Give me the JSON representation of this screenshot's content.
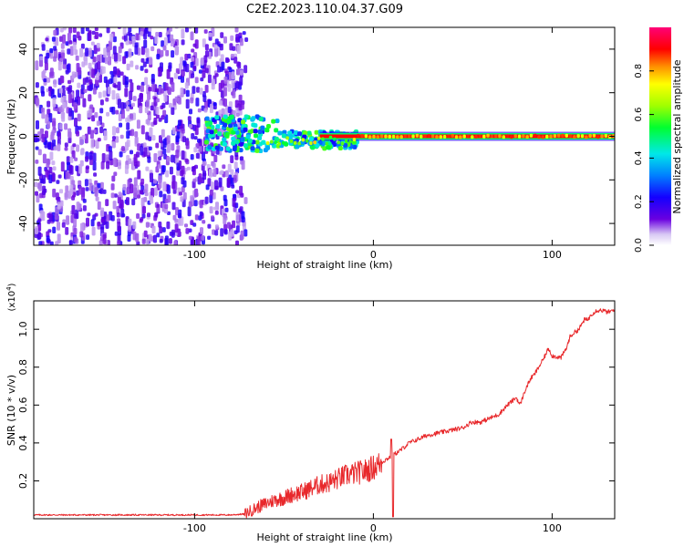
{
  "title": "C2E2.2023.110.04.37.G09",
  "chart_data": [
    {
      "type": "heatmap",
      "xlabel": "Height of straight line (km)",
      "ylabel": "Frequency (Hz)",
      "xlim": [
        -190,
        135
      ],
      "ylim": [
        -50,
        50
      ],
      "xticks": [
        -100,
        0,
        100
      ],
      "yticks": [
        -40,
        -20,
        0,
        20,
        40
      ],
      "colorbar": {
        "label": "Normalized spectral amplitude",
        "range": [
          0.0,
          1.0
        ],
        "ticks": [
          0.0,
          0.2,
          0.4,
          0.6,
          0.8
        ],
        "colormap": "rainbow (violet to magenta)"
      },
      "regions": [
        {
          "x_range": [
            -190,
            -70
          ],
          "frequency_range": [
            -50,
            50
          ],
          "amplitude": "low to moderate, scattered noise"
        },
        {
          "x_range": [
            -95,
            -55
          ],
          "frequency_range": [
            -8,
            10
          ],
          "amplitude": "about 0.3-0.5"
        },
        {
          "x_range": [
            -55,
            -10
          ],
          "frequency_range": [
            -6,
            2
          ],
          "amplitude": "about 0.4-0.8"
        },
        {
          "x_range": [
            -10,
            135
          ],
          "frequency_range": [
            -1,
            1
          ],
          "amplitude": "about 0.8-0.9 (constant tone near 0 Hz)"
        }
      ]
    },
    {
      "type": "line",
      "xlabel": "Height of straight line (km)",
      "ylabel": "SNR (10 * v/v)",
      "y_multiplier_label": "(x10",
      "y_multiplier_exp": "4",
      "y_multiplier_close": ")",
      "xlim": [
        -190,
        135
      ],
      "ylim": [
        0,
        1.15
      ],
      "xticks": [
        -100,
        0,
        100
      ],
      "yticks": [
        0.2,
        0.4,
        0.6,
        0.8,
        1.0
      ],
      "series": [
        {
          "color": "#e8282b",
          "x": [
            -190,
            -175,
            -160,
            -145,
            -130,
            -115,
            -100,
            -90,
            -80,
            -72,
            -65,
            -60,
            -55,
            -50,
            -45,
            -40,
            -35,
            -30,
            -25,
            -20,
            -15,
            -10,
            -5,
            0,
            5,
            10,
            15,
            20,
            25,
            30,
            35,
            40,
            45,
            50,
            55,
            60,
            65,
            70,
            75,
            80,
            82,
            85,
            88,
            90,
            95,
            98,
            100,
            105,
            108,
            110,
            112,
            115,
            118,
            120,
            122,
            125,
            128,
            131,
            135
          ],
          "y": [
            0.02,
            0.02,
            0.02,
            0.02,
            0.02,
            0.02,
            0.02,
            0.02,
            0.02,
            0.025,
            0.06,
            0.08,
            0.1,
            0.11,
            0.13,
            0.14,
            0.16,
            0.18,
            0.19,
            0.21,
            0.23,
            0.24,
            0.25,
            0.27,
            0.3,
            0.33,
            0.36,
            0.4,
            0.42,
            0.44,
            0.45,
            0.46,
            0.47,
            0.48,
            0.51,
            0.51,
            0.53,
            0.55,
            0.6,
            0.64,
            0.6,
            0.68,
            0.74,
            0.76,
            0.84,
            0.9,
            0.86,
            0.85,
            0.9,
            0.96,
            0.98,
            1.0,
            1.05,
            1.05,
            1.08,
            1.1,
            1.1,
            1.09,
            1.1
          ]
        }
      ]
    }
  ]
}
